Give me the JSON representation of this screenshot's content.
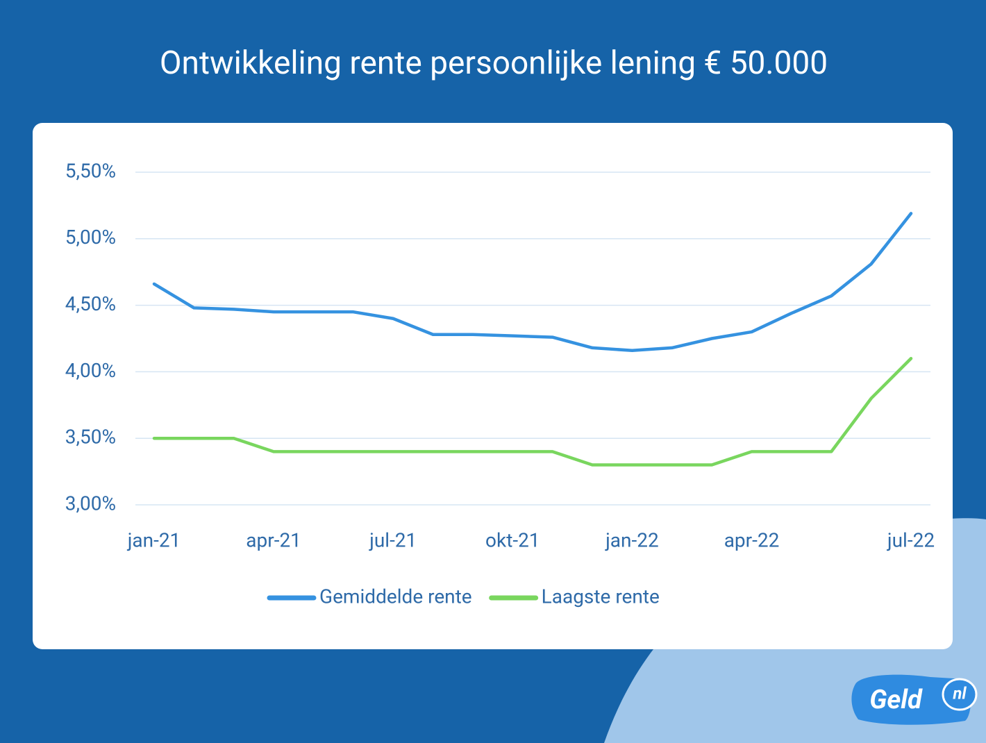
{
  "chart_data": {
    "type": "line",
    "title": "Ontwikkeling rente persoonlijke lening € 50.000",
    "categories": [
      "jan-21",
      null,
      null,
      "apr-21",
      null,
      null,
      "jul-21",
      null,
      null,
      "okt-21",
      null,
      null,
      "jan-22",
      null,
      null,
      "apr-22",
      null,
      null,
      null,
      "jul-22"
    ],
    "series": [
      {
        "name": "Gemiddelde rente",
        "color": "#3592e0",
        "values": [
          4.66,
          4.48,
          4.47,
          4.45,
          4.45,
          4.45,
          4.4,
          4.28,
          4.28,
          4.27,
          4.26,
          4.18,
          4.16,
          4.18,
          4.25,
          4.3,
          4.44,
          4.57,
          4.81,
          5.19
        ]
      },
      {
        "name": "Laagste rente",
        "color": "#79d65e",
        "values": [
          3.5,
          3.5,
          3.5,
          3.4,
          3.4,
          3.4,
          3.4,
          3.4,
          3.4,
          3.4,
          3.4,
          3.3,
          3.3,
          3.3,
          3.3,
          3.4,
          3.4,
          3.4,
          3.8,
          4.1
        ]
      }
    ],
    "ylim": [
      3,
      5.5
    ],
    "yticks": [
      {
        "value": 3,
        "label": "3,00%"
      },
      {
        "value": 3.5,
        "label": "3,50%"
      },
      {
        "value": 4,
        "label": "4,00%"
      },
      {
        "value": 4.5,
        "label": "4,50%"
      },
      {
        "value": 5,
        "label": "5,00%"
      },
      {
        "value": 5.5,
        "label": "5,50%"
      }
    ],
    "grid": true,
    "legend": "bottom"
  },
  "logo": {
    "text": "Geld",
    "suffix": "nl"
  }
}
